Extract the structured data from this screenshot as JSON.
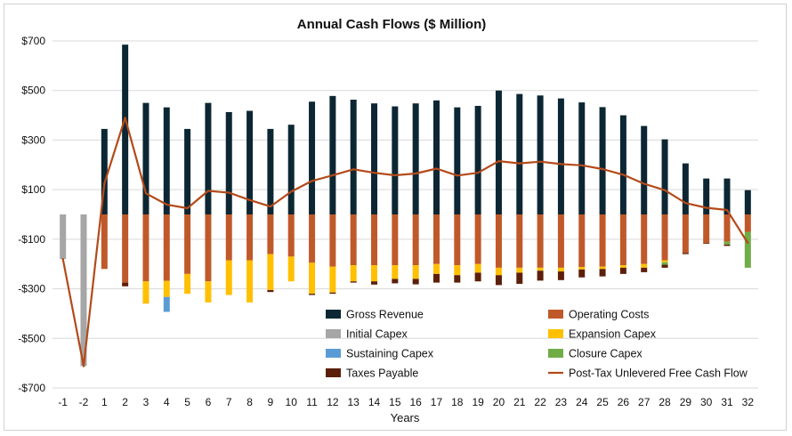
{
  "chart_data": {
    "type": "bar",
    "stacked": true,
    "title": "Annual Cash Flows ($ Million)",
    "xlabel": "Years",
    "ylabel": "",
    "ylim": [
      -700,
      700
    ],
    "ytick_values": [
      -700,
      -500,
      -300,
      -100,
      100,
      300,
      500,
      700
    ],
    "ytick_labels": [
      "-$700",
      "-$500",
      "-$300",
      "-$100",
      "$100",
      "$300",
      "$500",
      "$700"
    ],
    "grid": true,
    "legend_position": "bottom-right",
    "categories": [
      "-1",
      "-2",
      "1",
      "2",
      "3",
      "4",
      "5",
      "6",
      "7",
      "8",
      "9",
      "10",
      "11",
      "12",
      "13",
      "14",
      "15",
      "16",
      "17",
      "18",
      "19",
      "20",
      "21",
      "22",
      "23",
      "24",
      "25",
      "26",
      "27",
      "28",
      "29",
      "30",
      "31",
      "32"
    ],
    "series": [
      {
        "name": "Gross Revenue",
        "kind": "bar",
        "color": "#0c2733",
        "values": [
          0,
          0,
          345,
          685,
          450,
          432,
          345,
          450,
          413,
          418,
          345,
          362,
          455,
          478,
          463,
          448,
          436,
          448,
          460,
          432,
          438,
          500,
          486,
          480,
          468,
          452,
          433,
          400,
          357,
          303,
          206,
          145,
          145,
          98
        ]
      },
      {
        "name": "Operating Costs",
        "kind": "bar",
        "color": "#c0592a",
        "values": [
          0,
          0,
          -220,
          -275,
          -270,
          -268,
          -240,
          -270,
          -185,
          -185,
          -160,
          -170,
          -195,
          -210,
          -205,
          -205,
          -205,
          -205,
          -200,
          -205,
          -200,
          -215,
          -215,
          -215,
          -215,
          -212,
          -210,
          -205,
          -200,
          -185,
          -155,
          -115,
          -110,
          -70
        ]
      },
      {
        "name": "Initial Capex",
        "kind": "bar",
        "color": "#a6a6a6",
        "values": [
          -180,
          -612,
          0,
          0,
          0,
          0,
          0,
          0,
          0,
          0,
          0,
          0,
          0,
          0,
          0,
          0,
          0,
          0,
          0,
          0,
          0,
          0,
          0,
          0,
          0,
          0,
          0,
          0,
          0,
          0,
          0,
          0,
          0,
          0
        ]
      },
      {
        "name": "Expansion Capex",
        "kind": "bar",
        "color": "#ffc000",
        "values": [
          0,
          0,
          0,
          0,
          -90,
          -65,
          -80,
          -85,
          -140,
          -170,
          -145,
          -100,
          -125,
          -105,
          -65,
          -65,
          -55,
          -55,
          -40,
          -40,
          -35,
          -30,
          -20,
          -12,
          -15,
          -10,
          -10,
          -10,
          -15,
          -8,
          0,
          0,
          0,
          0
        ]
      },
      {
        "name": "Sustaining Capex",
        "kind": "bar",
        "color": "#5b9bd5",
        "values": [
          0,
          0,
          0,
          0,
          0,
          -60,
          0,
          0,
          0,
          0,
          0,
          0,
          0,
          0,
          0,
          0,
          0,
          0,
          0,
          0,
          0,
          0,
          0,
          0,
          0,
          0,
          0,
          0,
          0,
          0,
          0,
          0,
          0,
          0
        ]
      },
      {
        "name": "Closure Capex",
        "kind": "bar",
        "color": "#70ad47",
        "values": [
          0,
          0,
          0,
          0,
          0,
          0,
          0,
          0,
          0,
          0,
          0,
          0,
          0,
          0,
          0,
          0,
          0,
          0,
          0,
          0,
          0,
          0,
          0,
          0,
          0,
          0,
          0,
          0,
          0,
          -10,
          0,
          0,
          -12,
          -145
        ]
      },
      {
        "name": "Taxes Payable",
        "kind": "bar",
        "color": "#5c1f0a",
        "values": [
          0,
          0,
          0,
          -15,
          0,
          0,
          0,
          0,
          0,
          0,
          -8,
          0,
          -5,
          -5,
          -5,
          -13,
          -18,
          -22,
          -35,
          -30,
          -35,
          -40,
          -45,
          -40,
          -35,
          -32,
          -30,
          -25,
          -18,
          -12,
          -5,
          -3,
          -5,
          0
        ]
      },
      {
        "name": "Post-Tax Unlevered Free Cash Flow",
        "kind": "line",
        "color": "#b34a1a",
        "values": [
          -180,
          -612,
          125,
          390,
          85,
          40,
          25,
          95,
          88,
          58,
          32,
          92,
          135,
          158,
          182,
          168,
          158,
          165,
          185,
          157,
          168,
          215,
          206,
          213,
          203,
          198,
          183,
          160,
          124,
          98,
          46,
          27,
          18,
          -115
        ]
      }
    ]
  }
}
